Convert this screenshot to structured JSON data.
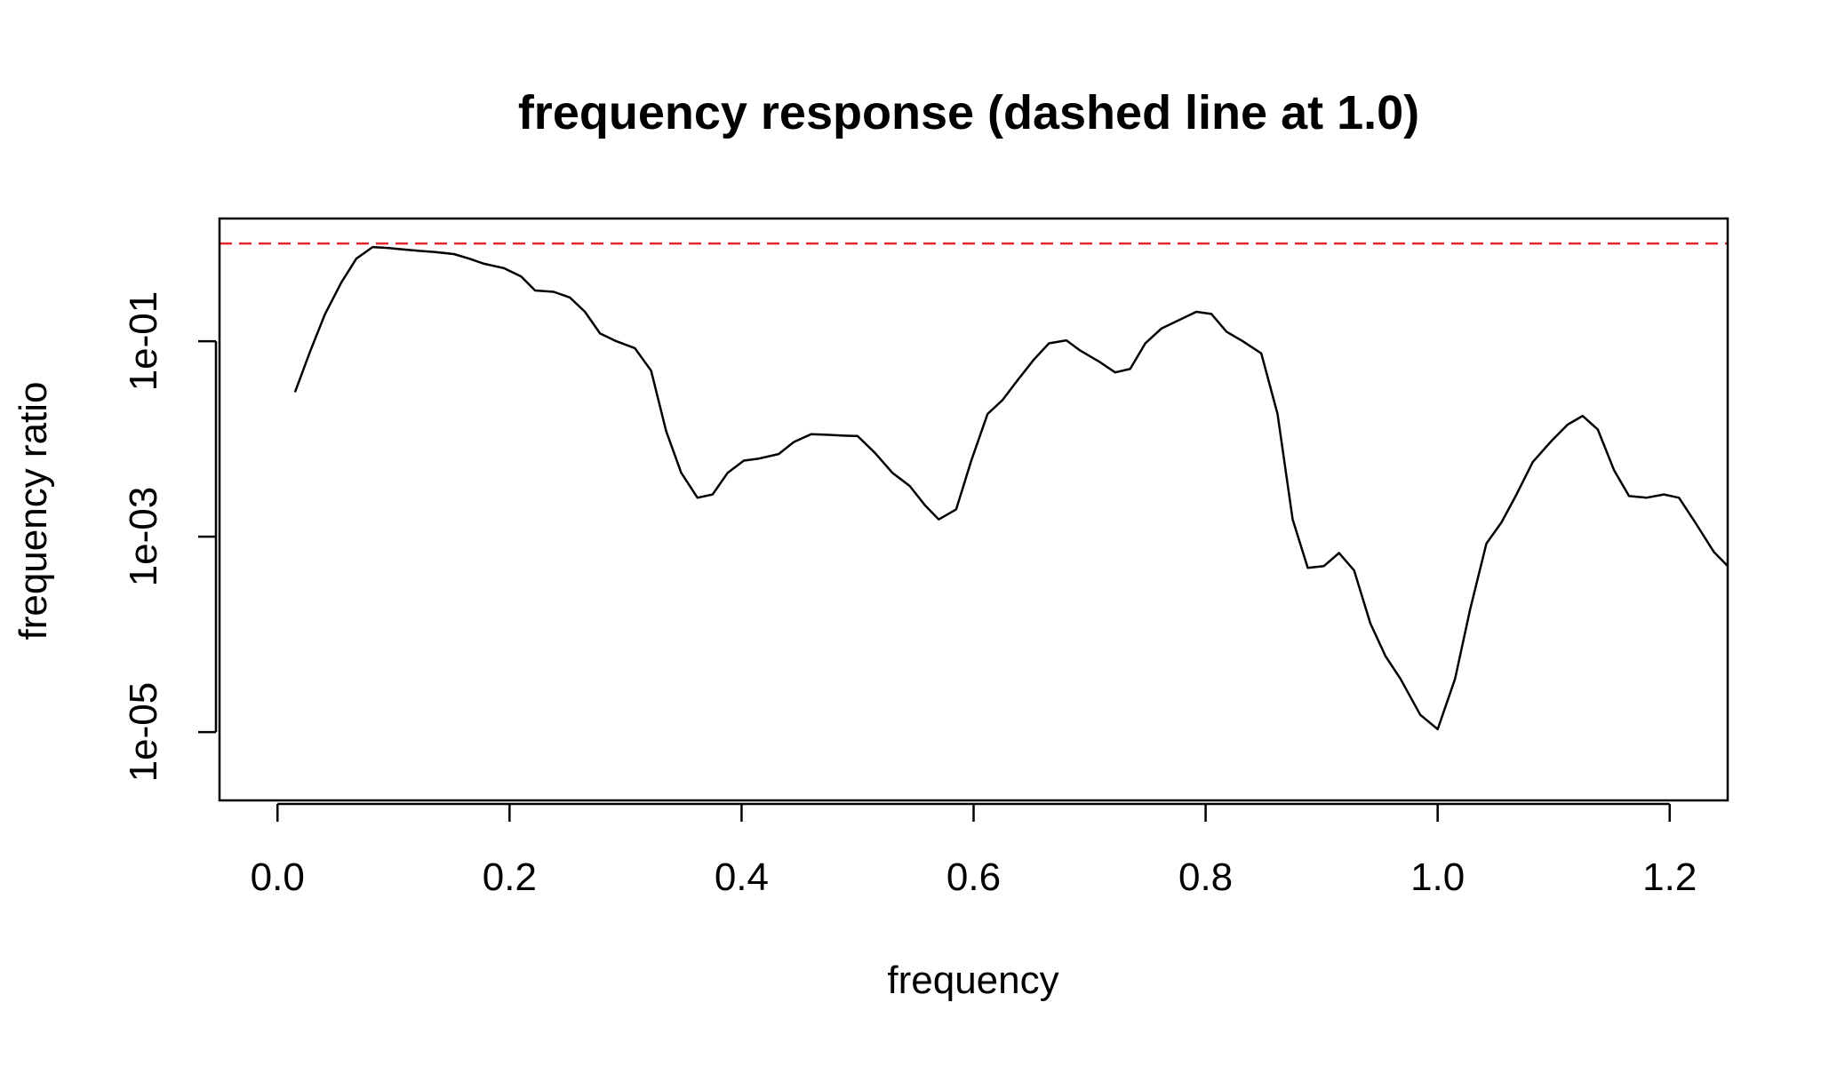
{
  "chart_data": {
    "type": "line",
    "title": "frequency response (dashed line at 1.0)",
    "xlabel": "frequency",
    "ylabel": "frequency ratio",
    "xlim": [
      -0.05,
      1.25
    ],
    "ylim": [
      2e-06,
      1.8
    ],
    "y_scale": "log",
    "x_ticks": [
      0.0,
      0.2,
      0.4,
      0.6,
      0.8,
      1.0,
      1.2
    ],
    "x_tick_labels": [
      "0.0",
      "0.2",
      "0.4",
      "0.6",
      "0.8",
      "1.0",
      "1.2"
    ],
    "y_ticks": [
      1e-05,
      0.001,
      0.1
    ],
    "y_tick_labels": [
      "1e-05",
      "1e-03",
      "1e-01"
    ],
    "grid": false,
    "reference_line": {
      "y": 1.0,
      "color": "#e8262a",
      "style": "dashed"
    },
    "series": [
      {
        "color": "#000000",
        "x": [
          0.015,
          0.028,
          0.041,
          0.055,
          0.068,
          0.082,
          0.095,
          0.108,
          0.122,
          0.135,
          0.152,
          0.165,
          0.178,
          0.195,
          0.21,
          0.222,
          0.238,
          0.252,
          0.265,
          0.278,
          0.292,
          0.308,
          0.322,
          0.335,
          0.348,
          0.362,
          0.375,
          0.388,
          0.402,
          0.415,
          0.432,
          0.445,
          0.46,
          0.475,
          0.488,
          0.5,
          0.515,
          0.53,
          0.545,
          0.558,
          0.57,
          0.585,
          0.598,
          0.612,
          0.625,
          0.638,
          0.652,
          0.665,
          0.68,
          0.692,
          0.708,
          0.722,
          0.735,
          0.748,
          0.762,
          0.775,
          0.792,
          0.805,
          0.818,
          0.832,
          0.848,
          0.862,
          0.875,
          0.888,
          0.902,
          0.915,
          0.928,
          0.942,
          0.955,
          0.968,
          0.985,
          1.0,
          1.015,
          1.028,
          1.042,
          1.055,
          1.068,
          1.082,
          1.098,
          1.112,
          1.125,
          1.138,
          1.152,
          1.165,
          1.18,
          1.195,
          1.208,
          1.222,
          1.238,
          1.25
        ],
        "y": [
          0.03,
          0.078,
          0.19,
          0.4,
          0.7,
          0.92,
          0.9,
          0.87,
          0.84,
          0.82,
          0.78,
          0.7,
          0.62,
          0.56,
          0.46,
          0.33,
          0.32,
          0.28,
          0.2,
          0.12,
          0.1,
          0.085,
          0.05,
          0.012,
          0.0045,
          0.0025,
          0.0027,
          0.0045,
          0.006,
          0.0063,
          0.007,
          0.0093,
          0.0112,
          0.011,
          0.0108,
          0.0107,
          0.0072,
          0.0045,
          0.0033,
          0.0021,
          0.0015,
          0.0019,
          0.006,
          0.018,
          0.025,
          0.04,
          0.065,
          0.095,
          0.102,
          0.08,
          0.062,
          0.048,
          0.052,
          0.095,
          0.135,
          0.16,
          0.2,
          0.19,
          0.125,
          0.1,
          0.075,
          0.018,
          0.0015,
          0.00048,
          0.0005,
          0.00068,
          0.00045,
          0.00013,
          6e-05,
          3.5e-05,
          1.5e-05,
          1.07e-05,
          3.5e-05,
          0.00018,
          0.00085,
          0.0014,
          0.0027,
          0.0058,
          0.0095,
          0.014,
          0.0172,
          0.0125,
          0.0048,
          0.0026,
          0.0025,
          0.0027,
          0.0025,
          0.0014,
          0.0007,
          0.0005
        ]
      }
    ]
  }
}
